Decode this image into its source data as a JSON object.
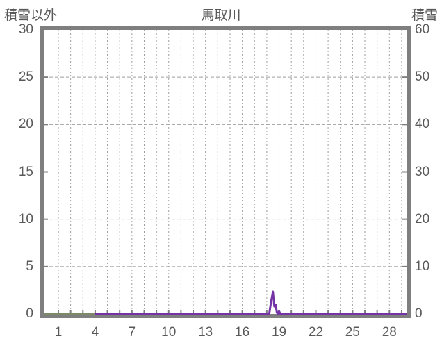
{
  "header": {
    "left_axis_title": "積雪以外",
    "chart_title": "馬取川",
    "right_axis_title": "積雪"
  },
  "chart_data": {
    "type": "line",
    "title": "馬取川",
    "left_axis": {
      "label": "積雪以外",
      "min": 0,
      "max": 30,
      "tick_labels": [
        30,
        25,
        20,
        15,
        10,
        5,
        0
      ],
      "grid_values": [
        5,
        10,
        15,
        20,
        25
      ]
    },
    "right_axis": {
      "label": "積雪",
      "min": 0,
      "max": 60,
      "tick_labels": [
        60,
        50,
        40,
        30,
        20,
        10,
        0
      ]
    },
    "x_axis": {
      "tick_labels": [
        1,
        4,
        7,
        10,
        13,
        16,
        19,
        22,
        25,
        28
      ],
      "grid_day_start": 1,
      "grid_day_end": 29,
      "day_at_left_edge": -0.19,
      "day_at_right_edge": 29.4
    },
    "series": [
      {
        "name": "green-zero-segment",
        "axis": "left",
        "color": "#7d8a6a",
        "width": 3,
        "points": [
          [
            -0.19,
            0
          ],
          [
            4.0,
            0
          ]
        ]
      },
      {
        "name": "purple-series",
        "axis": "left",
        "color": "#7434a6",
        "width": 3,
        "points": [
          [
            3.95,
            0
          ],
          [
            18.2,
            0
          ],
          [
            18.35,
            1.3
          ],
          [
            18.5,
            2.35
          ],
          [
            18.62,
            0.8
          ],
          [
            18.72,
            1.0
          ],
          [
            18.82,
            0.15
          ],
          [
            18.92,
            0
          ],
          [
            19.0,
            0.3
          ],
          [
            19.12,
            0
          ],
          [
            29.4,
            0
          ]
        ]
      }
    ],
    "grid_on": true,
    "legend": "none",
    "colors": {
      "border": "#7f7f7f",
      "grid": "#9e9e9e",
      "tick": "#7f7f7f",
      "text": "#595959"
    }
  }
}
